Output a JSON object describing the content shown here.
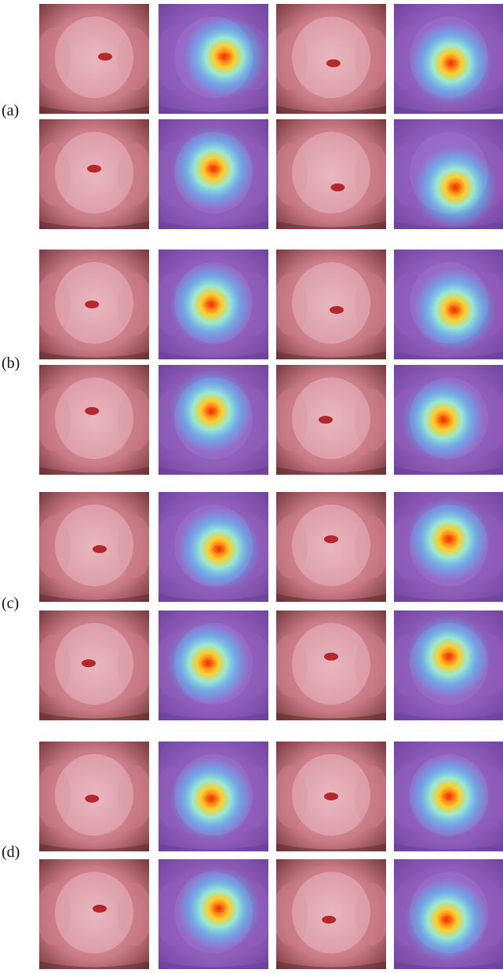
{
  "groups": [
    {
      "label": "(a)"
    },
    {
      "label": "(b)"
    },
    {
      "label": "(c)"
    },
    {
      "label": "(d)"
    }
  ],
  "colors": {
    "tissue_light": "#e9b7bf",
    "tissue_mid": "#c97a86",
    "tissue_dark": "#7a3a3f",
    "lesion": "#b01818",
    "heat_base": "#6c4bd8",
    "heat_hot": "#ff2a00"
  }
}
